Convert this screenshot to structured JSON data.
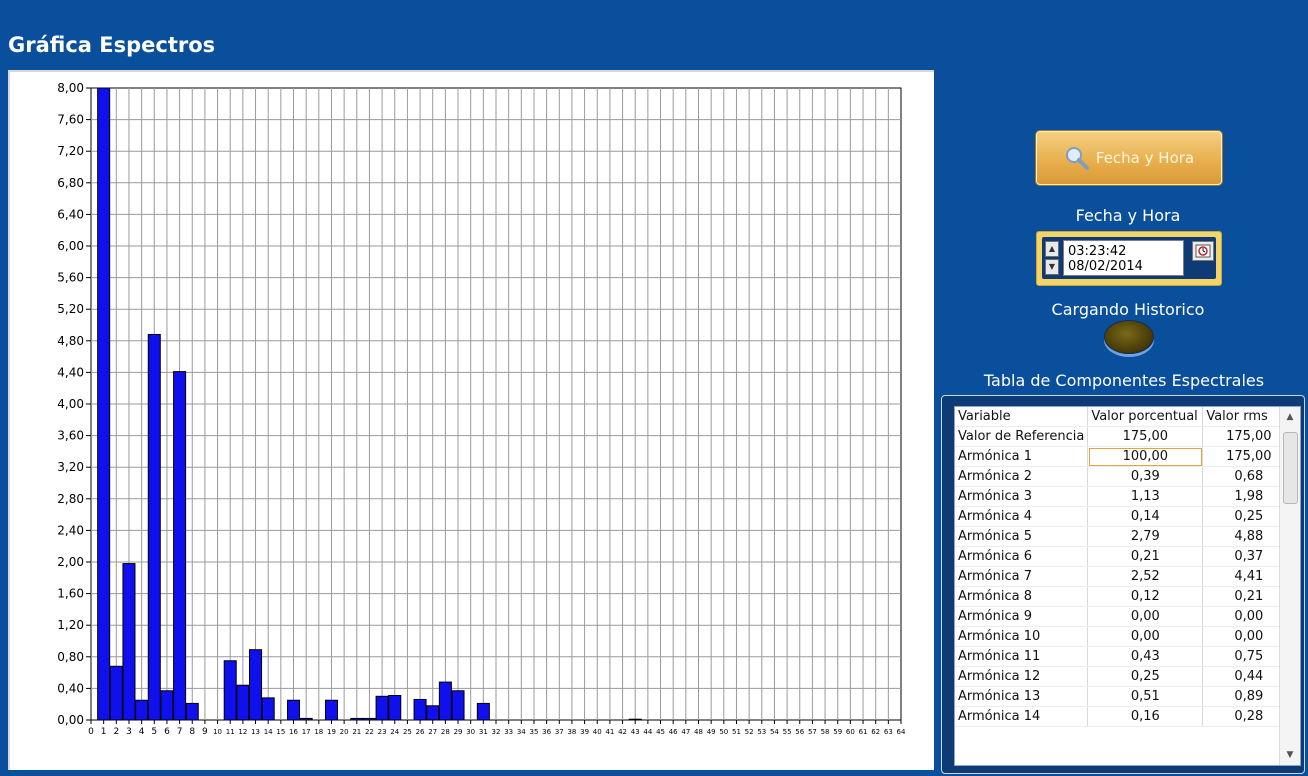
{
  "app_title": "Gráfica Espectros",
  "search_button": {
    "label": "Fecha y Hora",
    "icon": "magnifier-icon"
  },
  "datetime": {
    "label": "Fecha y Hora",
    "time": "03:23:42",
    "date": "08/02/2014"
  },
  "loading": {
    "label": "Cargando Historico"
  },
  "table": {
    "title": "Tabla de Componentes Espectrales",
    "headers": [
      "Variable",
      "Valor porcentual",
      "Valor rms"
    ],
    "rows": [
      [
        "Valor de Referencia",
        "175,00",
        "175,00"
      ],
      [
        "Armónica 1",
        "100,00",
        "175,00"
      ],
      [
        "Armónica 2",
        "0,39",
        "0,68"
      ],
      [
        "Armónica 3",
        "1,13",
        "1,98"
      ],
      [
        "Armónica 4",
        "0,14",
        "0,25"
      ],
      [
        "Armónica 5",
        "2,79",
        "4,88"
      ],
      [
        "Armónica 6",
        "0,21",
        "0,37"
      ],
      [
        "Armónica 7",
        "2,52",
        "4,41"
      ],
      [
        "Armónica 8",
        "0,12",
        "0,21"
      ],
      [
        "Armónica 9",
        "0,00",
        "0,00"
      ],
      [
        "Armónica 10",
        "0,00",
        "0,00"
      ],
      [
        "Armónica 11",
        "0,43",
        "0,75"
      ],
      [
        "Armónica 12",
        "0,25",
        "0,44"
      ],
      [
        "Armónica 13",
        "0,51",
        "0,89"
      ],
      [
        "Armónica 14",
        "0,16",
        "0,28"
      ]
    ]
  },
  "chart_data": {
    "type": "bar",
    "ylim": [
      0,
      8
    ],
    "yticks": [
      "0,00",
      "0,40",
      "0,80",
      "1,20",
      "1,60",
      "2,00",
      "2,40",
      "2,80",
      "3,20",
      "3,60",
      "4,00",
      "4,40",
      "4,80",
      "5,20",
      "5,60",
      "6,00",
      "6,40",
      "6,80",
      "7,20",
      "7,60",
      "8,00"
    ],
    "xlim": [
      0,
      64
    ],
    "grid": true,
    "bar_color": "#1010ee",
    "x": [
      1,
      2,
      3,
      4,
      5,
      6,
      7,
      8,
      9,
      10,
      11,
      12,
      13,
      14,
      15,
      16,
      17,
      18,
      19,
      20,
      21,
      22,
      23,
      24,
      25,
      26,
      27,
      28,
      29,
      30,
      31,
      43
    ],
    "values": [
      8.0,
      0.68,
      1.98,
      0.25,
      4.88,
      0.37,
      4.41,
      0.21,
      0.0,
      0.0,
      0.75,
      0.44,
      0.89,
      0.28,
      0.0,
      0.25,
      0.02,
      0.0,
      0.25,
      0.0,
      0.02,
      0.02,
      0.3,
      0.31,
      0.0,
      0.26,
      0.18,
      0.48,
      0.37,
      0.0,
      0.21,
      0.01
    ]
  }
}
